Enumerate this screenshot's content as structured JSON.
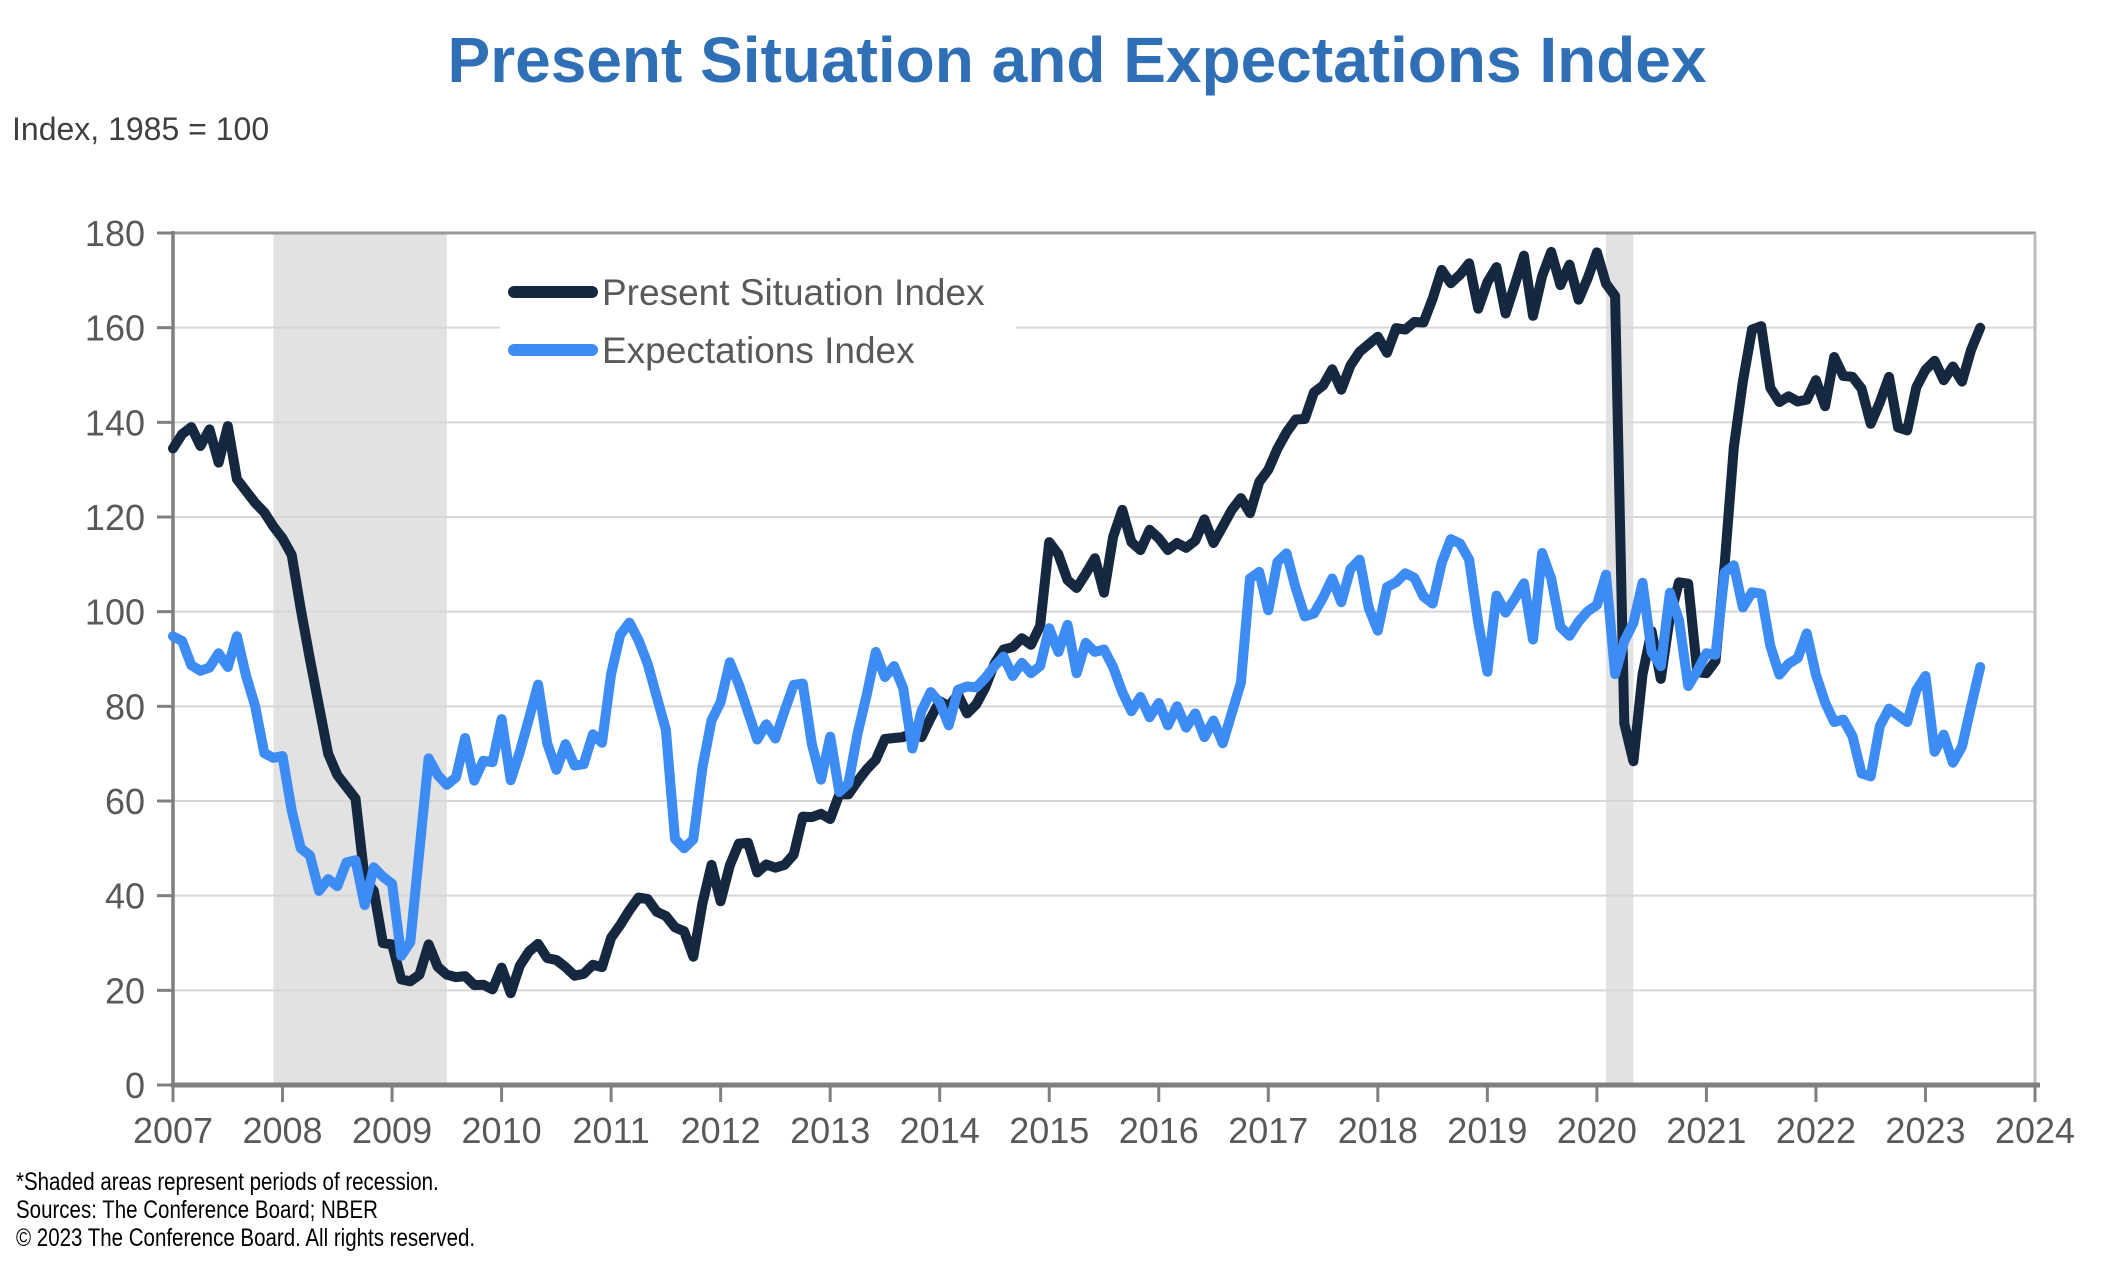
{
  "page": {
    "title": "Present Situation and Expectations Index",
    "y_axis_note": "Index, 1985 = 100"
  },
  "legend": {
    "present_label": "Present Situation Index",
    "expectations_label": "Expectations Index"
  },
  "footnotes": {
    "line1": "*Shaded areas represent periods of recession.",
    "line2": "Sources: The Conference Board; NBER",
    "line3": "© 2023 The Conference Board. All rights reserved."
  },
  "colors": {
    "title": "#2e6fb5",
    "axis_text": "#595959",
    "subtitle_text": "#3f3f3f",
    "gridline": "#d6d6d6",
    "axis_line": "#7f7f7f",
    "top_border": "#999999",
    "right_border": "#bdbdbd",
    "recession_band": "#e2e2e2",
    "present_situation": "#16283f",
    "expectations": "#3d8cf4",
    "legend_text": "#595959",
    "footer_text": "#000000"
  },
  "chart_data": {
    "type": "line",
    "title": "Present Situation and Expectations Index",
    "ylabel": "Index, 1985 = 100",
    "xlabel": "",
    "frequency": "monthly",
    "x_start": "2007-01",
    "x_end": "2023-07",
    "x_ticks": [
      2007,
      2008,
      2009,
      2010,
      2011,
      2012,
      2013,
      2014,
      2015,
      2016,
      2017,
      2018,
      2019,
      2020,
      2021,
      2022,
      2023,
      2024
    ],
    "y_ticks": [
      0,
      20,
      40,
      60,
      80,
      100,
      120,
      140,
      160,
      180
    ],
    "ylim": [
      0,
      180
    ],
    "xlim": [
      2007,
      2024
    ],
    "grid": "horizontal",
    "legend_position": "top-left-inside",
    "recessions": [
      {
        "start": 2007.917,
        "end": 2009.5
      },
      {
        "start": 2020.083,
        "end": 2020.333
      }
    ],
    "series": [
      {
        "name": "Present Situation Index",
        "color": "#16283f",
        "values": [
          134.5,
          137.5,
          139,
          135,
          138.5,
          131.5,
          139.2,
          128,
          125.5,
          123,
          121,
          118,
          115.5,
          112,
          100.5,
          90,
          80,
          70,
          65.5,
          63,
          60.5,
          43.5,
          41,
          30,
          29.7,
          22.3,
          21.9,
          23.3,
          29.7,
          25,
          23.3,
          22.8,
          23,
          21.1,
          21.2,
          20.2,
          24.8,
          19.4,
          25.2,
          28.2,
          29.8,
          26.8,
          26.4,
          24.9,
          23.1,
          23.5,
          25.4,
          24.9,
          31.1,
          33.8,
          36.9,
          39.6,
          39.3,
          36.6,
          35.7,
          33.3,
          32.5,
          27.1,
          38.3,
          46.5,
          38.8,
          46.4,
          51,
          51.2,
          44.9,
          46.6,
          45.9,
          46.5,
          48.7,
          56.7,
          56.6,
          57.3,
          56.2,
          61.4,
          61.4,
          64.2,
          66.7,
          68.7,
          73.1,
          73.3,
          73.5,
          74.5,
          73.5,
          77.5,
          81.1,
          80,
          82.5,
          78.5,
          80.4,
          84,
          89,
          92,
          92.5,
          94.4,
          93,
          97,
          114.7,
          112.1,
          106.7,
          105,
          108,
          111.3,
          104,
          115.8,
          121.5,
          114.7,
          113,
          117.3,
          115.5,
          113,
          114.5,
          113.5,
          115,
          119.5,
          114.5,
          118,
          121.5,
          124,
          120.8,
          127.4,
          130,
          134.4,
          137.9,
          140.6,
          140.7,
          146.3,
          147.8,
          151.2,
          146.9,
          152,
          154.9,
          156.5,
          158.1,
          154.7,
          159.9,
          159.6,
          161.2,
          161.1,
          166.1,
          172.2,
          169.4,
          171.2,
          173.6,
          164,
          169.6,
          172.8,
          163,
          169,
          175.2,
          162.5,
          170.9,
          176,
          169,
          173.3,
          165.9,
          170.5,
          175.9,
          169.3,
          166.7,
          76.4,
          68.4,
          86.7,
          95.9,
          85.8,
          98.9,
          106.2,
          105.9,
          87.2,
          87,
          89.6,
          110.1,
          134.7,
          148.7,
          159.6,
          160.3,
          147.3,
          144.3,
          145.5,
          144.4,
          144.8,
          148.9,
          143.4,
          153.8,
          149.8,
          149.6,
          147.1,
          139.7,
          144.2,
          149.6,
          138.9,
          138.3,
          147.4,
          151.1,
          153,
          148.9,
          151.8,
          148.6,
          155.3,
          160
        ]
      },
      {
        "name": "Expectations Index",
        "color": "#3d8cf4",
        "values": [
          94.8,
          93.8,
          88.7,
          87.5,
          88.2,
          91.2,
          88.3,
          94.8,
          86.5,
          80.1,
          70.1,
          69.1,
          69.5,
          58,
          50,
          48.5,
          41,
          43.5,
          42,
          47,
          47.5,
          38,
          46,
          44,
          42.5,
          27.3,
          30.2,
          49.5,
          69,
          65.5,
          63.4,
          65,
          73.3,
          64.3,
          68.5,
          68.2,
          77.3,
          64.4,
          70.4,
          77.4,
          84.6,
          72.2,
          66.6,
          72,
          67.5,
          67.8,
          74.1,
          72.3,
          86.8,
          95.1,
          97.7,
          94,
          89,
          82,
          75,
          52,
          50,
          51.9,
          67,
          77,
          80.9,
          89.3,
          84.6,
          78.8,
          73,
          76.2,
          73.2,
          79,
          84.5,
          84.8,
          72,
          64.5,
          73.6,
          61.9,
          63.7,
          74.3,
          82.4,
          91.5,
          86.2,
          88.5,
          83.8,
          71.1,
          79,
          83,
          80.8,
          76,
          83.5,
          84.2,
          84,
          86,
          88.5,
          90.5,
          86.4,
          89.2,
          87,
          88.5,
          96.5,
          91.5,
          97.2,
          87,
          93.4,
          91.5,
          92,
          88.3,
          83,
          79,
          82,
          77.7,
          80.7,
          76,
          80,
          75.5,
          78.5,
          73.5,
          77,
          72.2,
          78.6,
          85,
          107,
          108.4,
          100.3,
          110.5,
          112.3,
          105,
          99,
          99.6,
          103,
          107,
          102,
          109,
          111,
          100.8,
          96,
          105.2,
          106.2,
          108.1,
          107.2,
          103.2,
          101.7,
          110.3,
          115.3,
          114.4,
          111,
          97.7,
          87.3,
          103.4,
          99.8,
          102.7,
          106,
          94.1,
          112.4,
          107,
          96.8,
          94.9,
          97.9,
          100.1,
          101.4,
          107.8,
          86.8,
          93.8,
          97.6,
          106.1,
          91.5,
          88.5,
          104,
          98.2,
          84.3,
          87.5,
          91.2,
          90.9,
          108.3,
          109.8,
          100.9,
          104.1,
          103.8,
          92.8,
          86.7,
          89,
          90.2,
          95.4,
          86.7,
          80.8,
          76.7,
          77.2,
          73.7,
          65.8,
          65.2,
          75.8,
          79.5,
          78.1,
          76.7,
          83.4,
          86.4,
          70.4,
          74,
          68.1,
          71.5,
          80,
          88.3
        ]
      }
    ]
  }
}
